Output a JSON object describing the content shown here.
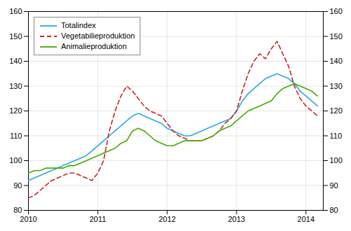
{
  "chart_data": {
    "type": "line",
    "x": [
      2010,
      2010.0833333333333,
      2010.1666666666667,
      2010.25,
      2010.3333333333333,
      2010.4166666666667,
      2010.5,
      2010.5833333333333,
      2010.6666666666667,
      2010.75,
      2010.8333333333333,
      2010.9166666666667,
      2011,
      2011.0833333333333,
      2011.1666666666667,
      2011.25,
      2011.3333333333333,
      2011.4166666666667,
      2011.5,
      2011.5833333333333,
      2011.6666666666667,
      2011.75,
      2011.8333333333333,
      2011.9166666666667,
      2012,
      2012.0833333333333,
      2012.1666666666667,
      2012.25,
      2012.3333333333333,
      2012.4166666666667,
      2012.5,
      2012.5833333333333,
      2012.6666666666667,
      2012.75,
      2012.8333333333333,
      2012.9166666666667,
      2013,
      2013.0833333333333,
      2013.1666666666667,
      2013.25,
      2013.3333333333333,
      2013.4166666666667,
      2013.5,
      2013.5833333333333,
      2013.6666666666667,
      2013.75,
      2013.8333333333333,
      2013.9166666666667,
      2014,
      2014.0833333333333,
      2014.1666666666667
    ],
    "series": [
      {
        "name": "Totalindex",
        "color": "#29abe2",
        "line_style": "solid",
        "values": [
          92,
          93,
          94,
          95,
          96,
          97,
          98,
          99,
          100,
          101,
          102,
          104,
          106,
          108,
          110,
          112,
          114,
          116,
          118,
          119,
          118,
          117,
          116,
          115,
          113,
          112,
          111,
          110,
          110,
          111,
          112,
          113,
          114,
          115,
          116,
          117,
          120,
          124,
          127,
          129,
          131,
          133,
          134,
          135,
          134,
          133,
          131,
          128,
          126,
          124,
          122
        ]
      },
      {
        "name": "Vegetabilieproduktion",
        "color": "#cc2222",
        "line_style": "dashed",
        "values": [
          85,
          86,
          88,
          90,
          92,
          93,
          94,
          95,
          95,
          94,
          93,
          92,
          95,
          100,
          112,
          120,
          126,
          130,
          128,
          125,
          122,
          120,
          119,
          118,
          115,
          112,
          110,
          109,
          108,
          108,
          108,
          109,
          110,
          112,
          115,
          117,
          120,
          128,
          135,
          140,
          143,
          141,
          145,
          148,
          143,
          138,
          130,
          125,
          122,
          120,
          118
        ]
      },
      {
        "name": "Animalieproduktion",
        "color": "#44aa00",
        "line_style": "solid",
        "values": [
          95,
          96,
          96,
          97,
          97,
          97,
          97,
          98,
          98,
          99,
          100,
          101,
          102,
          103,
          104,
          105,
          107,
          108,
          112,
          113,
          112,
          110,
          108,
          107,
          106,
          106,
          107,
          108,
          108,
          108,
          108,
          109,
          110,
          112,
          113,
          114,
          116,
          118,
          120,
          121,
          122,
          123,
          124,
          127,
          129,
          130,
          131,
          130,
          129,
          128,
          126
        ]
      }
    ],
    "xlim": [
      2010.0,
      2014.25
    ],
    "xticks": [
      2010,
      2011,
      2012,
      2013,
      2014
    ],
    "ylim": [
      80,
      160
    ],
    "yticks": [
      80,
      90,
      100,
      110,
      120,
      130,
      140,
      150,
      160
    ],
    "grid": true,
    "legend": "top-left"
  }
}
